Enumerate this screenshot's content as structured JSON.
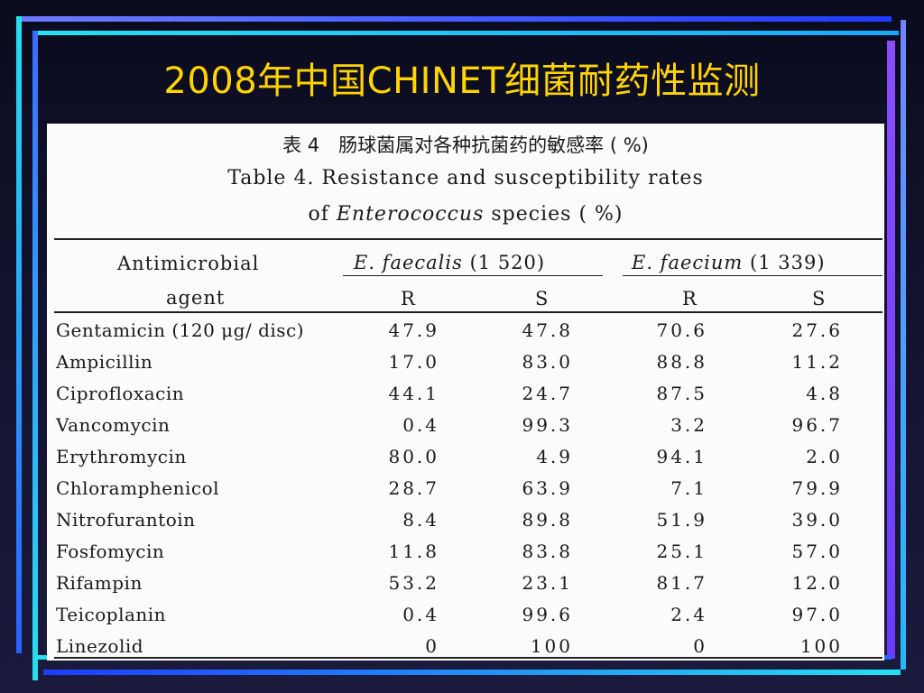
{
  "slide": {
    "title": "2008年中国CHINET细菌耐药性监测"
  },
  "table": {
    "caption_zh": "表 4　肠球菌属对各种抗菌药的敏感率 ( %)",
    "caption_en_line1": "Table 4. Resistance and susceptibility rates",
    "caption_en_line2_prefix": "of",
    "caption_en_line2_genus": "Enterococcus",
    "caption_en_line2_suffix": "species ( %)",
    "header": {
      "agent_line1": "Antimicrobial",
      "agent_line2": "agent",
      "group1_species": "E. faecalis",
      "group1_count": "(1 520)",
      "group2_species": "E. faecium",
      "group2_count": "(1 339)",
      "r": "R",
      "s": "S"
    },
    "rows": [
      {
        "agent": "Gentamicin (120 μg/ disc)",
        "fa_r": "47.9",
        "fa_s": "47.8",
        "fm_r": "70.6",
        "fm_s": "27.6"
      },
      {
        "agent": "Ampicillin",
        "fa_r": "17.0",
        "fa_s": "83.0",
        "fm_r": "88.8",
        "fm_s": "11.2"
      },
      {
        "agent": "Ciprofloxacin",
        "fa_r": "44.1",
        "fa_s": "24.7",
        "fm_r": "87.5",
        "fm_s": "4.8"
      },
      {
        "agent": "Vancomycin",
        "fa_r": "0.4",
        "fa_s": "99.3",
        "fm_r": "3.2",
        "fm_s": "96.7"
      },
      {
        "agent": "Erythromycin",
        "fa_r": "80.0",
        "fa_s": "4.9",
        "fm_r": "94.1",
        "fm_s": "2.0"
      },
      {
        "agent": "Chloramphenicol",
        "fa_r": "28.7",
        "fa_s": "63.9",
        "fm_r": "7.1",
        "fm_s": "79.9"
      },
      {
        "agent": "Nitrofurantoin",
        "fa_r": "8.4",
        "fa_s": "89.8",
        "fm_r": "51.9",
        "fm_s": "39.0"
      },
      {
        "agent": "Fosfomycin",
        "fa_r": "11.8",
        "fa_s": "83.8",
        "fm_r": "25.1",
        "fm_s": "57.0"
      },
      {
        "agent": "Rifampin",
        "fa_r": "53.2",
        "fa_s": "23.1",
        "fm_r": "81.7",
        "fm_s": "12.0"
      },
      {
        "agent": "Teicoplanin",
        "fa_r": "0.4",
        "fa_s": "99.6",
        "fm_r": "2.4",
        "fm_s": "97.0"
      },
      {
        "agent": "Linezolid",
        "fa_r": "0",
        "fa_s": "100",
        "fm_r": "0",
        "fm_s": "100"
      }
    ]
  }
}
